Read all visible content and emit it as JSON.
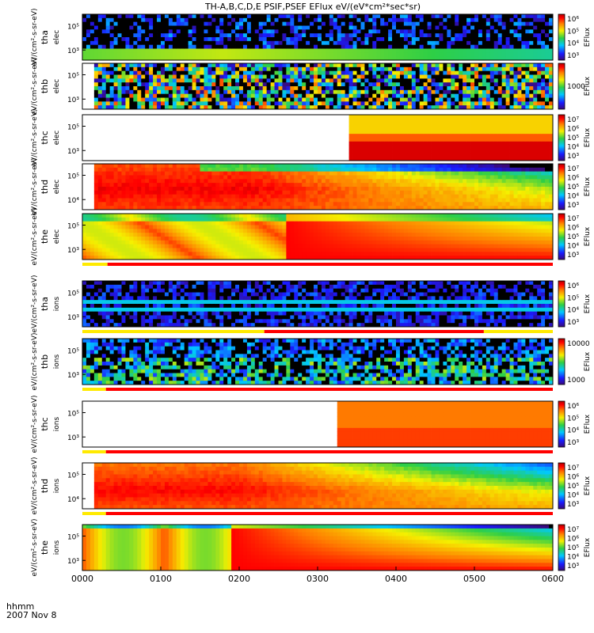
{
  "chart_data": {
    "type": "heatmap",
    "title": "TH-A,B,C,D,E PSIF,PSEF EFlux eV/(eV*cm²*sec*sr)",
    "xlabel_lines": [
      "hhmm",
      "2007 Nov 8"
    ],
    "x_ticks": [
      "0000",
      "0100",
      "0200",
      "0300",
      "0400",
      "0500",
      "0600"
    ],
    "x_range_hours": [
      0,
      6
    ],
    "colorbar_label": "EFlux",
    "panels": [
      {
        "probe": "tha",
        "species": "elec",
        "y_ticks": [
          "10⁵",
          "10³"
        ],
        "cbar_ticks": [
          "10⁶",
          "10⁵",
          "10⁴",
          "10³"
        ],
        "ylabel_unit": "eV/(cm²-s-sr-eV)",
        "pattern": "noisy_low",
        "fill_start_h": 0.0,
        "flag_bar": false
      },
      {
        "probe": "thb",
        "species": "elec",
        "y_ticks": [
          "10⁵",
          "10³"
        ],
        "cbar_ticks": [
          "1000"
        ],
        "ylabel_unit": "eV/(cm²-s-sr-eV)",
        "pattern": "noisy_random",
        "fill_start_h": 0.15,
        "flag_bar": false
      },
      {
        "probe": "thc",
        "species": "elec",
        "y_ticks": [
          "10⁵",
          "10³"
        ],
        "cbar_ticks": [
          "10⁷",
          "10⁶",
          "10⁵",
          "10⁴",
          "10³"
        ],
        "ylabel_unit": "eV/(cm²-s-sr-eV)",
        "pattern": "step",
        "fill_start_h": 3.38,
        "flag_bar": false
      },
      {
        "probe": "thd",
        "species": "elec",
        "y_ticks": [
          "10⁵",
          "10⁴"
        ],
        "cbar_ticks": [
          "10⁷",
          "10⁶",
          "10⁵",
          "10⁴",
          "10³"
        ],
        "ylabel_unit": "eV/(cm²-s-sr-eV)",
        "pattern": "hot_decay",
        "fill_start_h": 0.15,
        "flag_bar": false
      },
      {
        "probe": "the",
        "species": "elec",
        "y_ticks": [
          "10⁵",
          "10³"
        ],
        "cbar_ticks": [
          "10⁷",
          "10⁶",
          "10⁵",
          "10⁴",
          "10³"
        ],
        "ylabel_unit": "eV/(cm²-s-sr-eV)",
        "pattern": "arches",
        "fill_start_h": 0.0,
        "flag_bar": true,
        "flag_segments": [
          {
            "start_h": 0.0,
            "end_h": 0.32,
            "state": "yellow"
          },
          {
            "start_h": 0.32,
            "end_h": 6.0,
            "state": "red"
          }
        ]
      },
      {
        "probe": "tha",
        "species": "ions",
        "y_ticks": [
          "10⁵",
          "10³"
        ],
        "cbar_ticks": [
          "10⁶",
          "10⁵",
          "10⁴",
          "10³"
        ],
        "ylabel_unit": "eV/(cm²-s-sr-eV)",
        "pattern": "ion_band",
        "fill_start_h": 0.0,
        "flag_bar": true,
        "flag_segments": [
          {
            "start_h": 0.0,
            "end_h": 2.32,
            "state": "yellow"
          },
          {
            "start_h": 2.32,
            "end_h": 5.12,
            "state": "red"
          },
          {
            "start_h": 5.12,
            "end_h": 6.0,
            "state": "yellow"
          }
        ]
      },
      {
        "probe": "thb",
        "species": "ions",
        "y_ticks": [
          "10⁵",
          "10³"
        ],
        "cbar_ticks": [
          "10000",
          "1000"
        ],
        "ylabel_unit": "eV/(cm²-s-sr-eV)",
        "pattern": "ion_noisy",
        "fill_start_h": 0.0,
        "flag_bar": true,
        "flag_segments": [
          {
            "start_h": 0.0,
            "end_h": 0.3,
            "state": "yellow"
          },
          {
            "start_h": 0.3,
            "end_h": 6.0,
            "state": "red"
          }
        ]
      },
      {
        "probe": "thc",
        "species": "ions",
        "y_ticks": [
          "10⁵",
          "10³"
        ],
        "cbar_ticks": [
          "10⁶",
          "10⁵",
          "10⁴",
          "10³"
        ],
        "ylabel_unit": "eV/(cm²-s-sr-eV)",
        "pattern": "ion_step",
        "fill_start_h": 3.25,
        "flag_bar": true,
        "flag_segments": [
          {
            "start_h": 0.0,
            "end_h": 0.3,
            "state": "yellow"
          },
          {
            "start_h": 0.3,
            "end_h": 6.0,
            "state": "red"
          }
        ]
      },
      {
        "probe": "thd",
        "species": "ions",
        "y_ticks": [
          "10⁵",
          "10⁴"
        ],
        "cbar_ticks": [
          "10⁷",
          "10⁶",
          "10⁵",
          "10⁴",
          "10³"
        ],
        "ylabel_unit": "eV/(cm²-s-sr-eV)",
        "pattern": "ion_decay",
        "fill_start_h": 0.15,
        "flag_bar": true,
        "flag_segments": [
          {
            "start_h": 0.0,
            "end_h": 0.3,
            "state": "yellow"
          },
          {
            "start_h": 0.3,
            "end_h": 6.0,
            "state": "red"
          }
        ]
      },
      {
        "probe": "the",
        "species": "ions",
        "y_ticks": [
          "10⁵",
          "10³"
        ],
        "cbar_ticks": [
          "10⁷",
          "10⁶",
          "10⁵",
          "10⁴",
          "10³"
        ],
        "ylabel_unit": "eV/(cm²-s-sr-eV)",
        "pattern": "ion_arches",
        "fill_start_h": 0.0,
        "flag_bar": false
      }
    ]
  }
}
